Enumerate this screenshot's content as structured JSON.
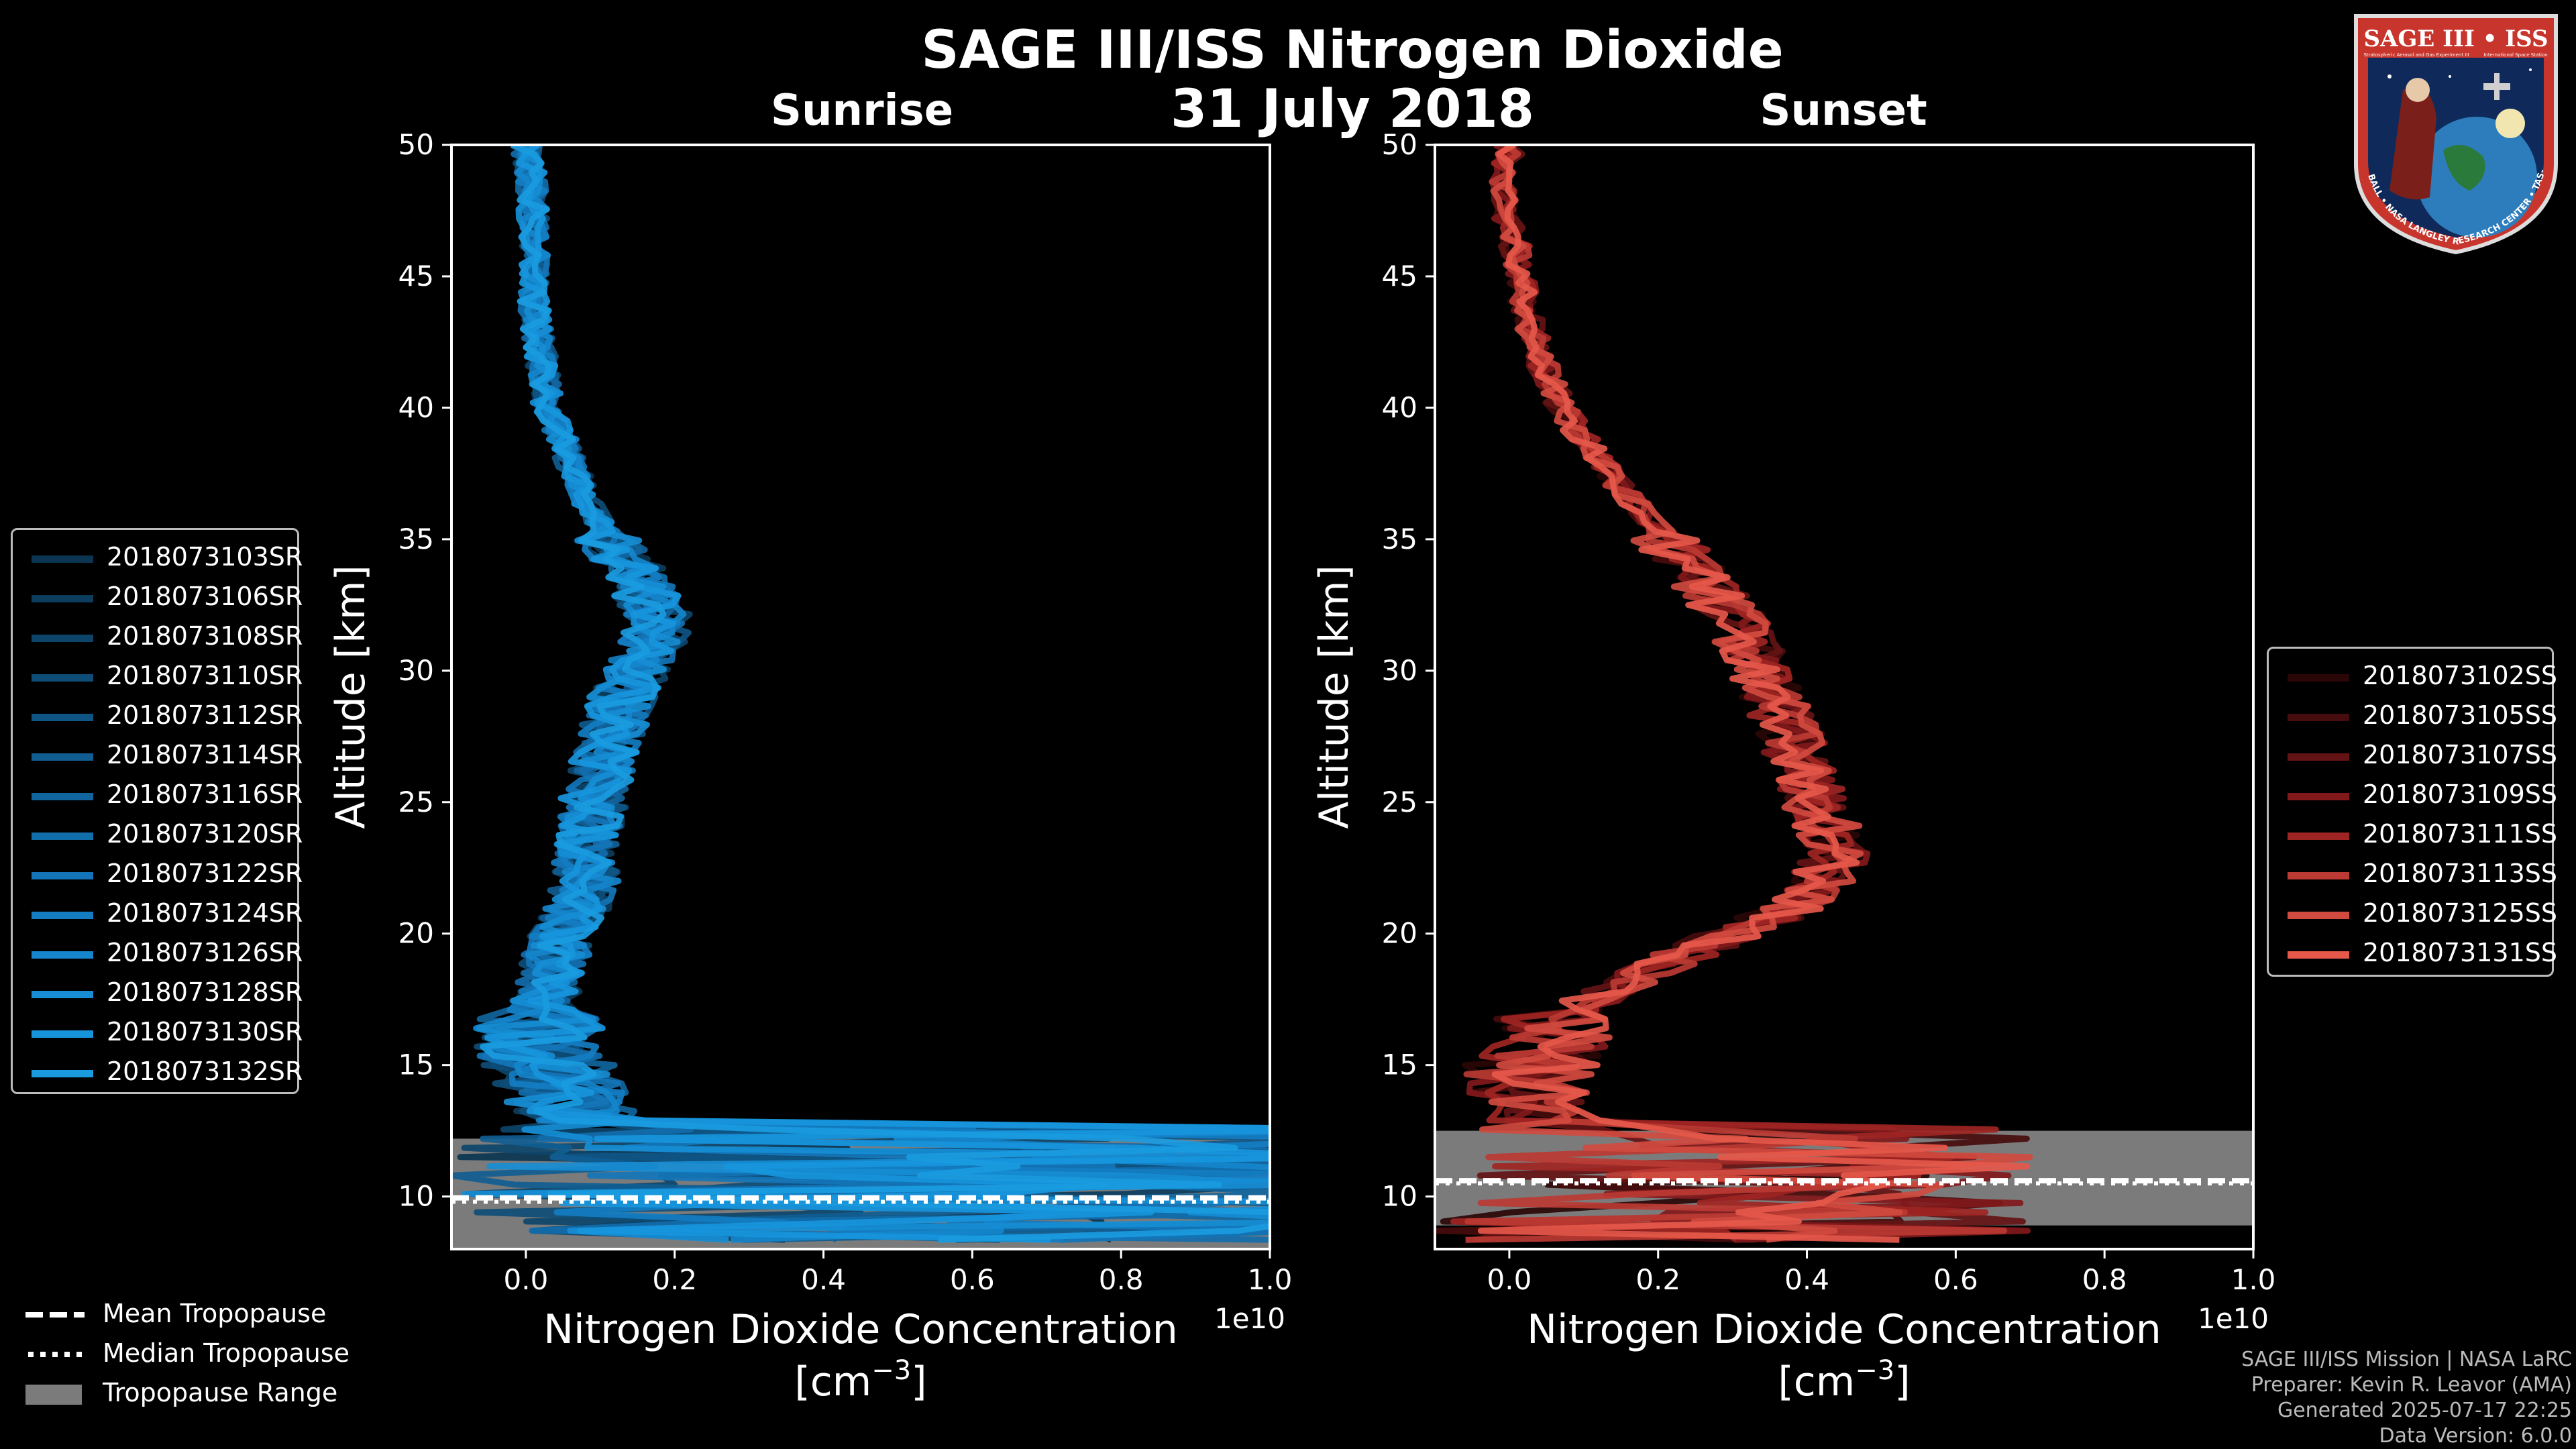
{
  "title": "SAGE III/ISS Nitrogen Dioxide",
  "date": "31 July 2018",
  "colors": {
    "background": "#000000",
    "sunrise": "#1a9be0",
    "sunset": "#e5584a",
    "tropopause_range": "#7b7b7b"
  },
  "chart_data": [
    {
      "type": "line",
      "panel": "Sunrise",
      "title": "Sunrise",
      "xlabel": "Nitrogen Dioxide Concentration",
      "xlabel_units": "[cm",
      "xlabel_exp": "−3",
      "xlabel_close": "]",
      "x_scale_label": "1e10",
      "ylabel": "Altitude [km]",
      "xlim": [
        -0.1,
        1.0
      ],
      "ylim": [
        8,
        50
      ],
      "xticks": [
        "0.0",
        "0.2",
        "0.4",
        "0.6",
        "0.8",
        "1.0"
      ],
      "xtick_values": [
        0.0,
        0.2,
        0.4,
        0.6,
        0.8,
        1.0
      ],
      "yticks": [
        "10",
        "15",
        "20",
        "25",
        "30",
        "35",
        "40",
        "45",
        "50"
      ],
      "ytick_values": [
        10,
        15,
        20,
        25,
        30,
        35,
        40,
        45,
        50
      ],
      "tropopause": {
        "mean": 9.95,
        "median": 9.9,
        "range": [
          8.0,
          12.2
        ]
      },
      "profile_altitudes_km": [
        50,
        48,
        46,
        44,
        42,
        40,
        38,
        36,
        35,
        34,
        33,
        32,
        31,
        30,
        29,
        28,
        27,
        26,
        25,
        24,
        23,
        22,
        21,
        20,
        19,
        18,
        17,
        16,
        15,
        14,
        13,
        12,
        11,
        10,
        9,
        8.5
      ],
      "profile_mean_1e10": [
        0.0,
        0.01,
        0.01,
        0.01,
        0.02,
        0.03,
        0.06,
        0.09,
        0.11,
        0.14,
        0.16,
        0.18,
        0.17,
        0.15,
        0.13,
        0.12,
        0.11,
        0.1,
        0.09,
        0.09,
        0.08,
        0.08,
        0.07,
        0.05,
        0.04,
        0.03,
        0.02,
        0.02,
        0.03,
        0.05,
        0.08,
        0.2,
        0.3,
        0.25,
        0.3,
        0.35
      ],
      "series": [
        {
          "name": "2018073103SR",
          "color": "#0b3550"
        },
        {
          "name": "2018073106SR",
          "color": "#0c3d5d"
        },
        {
          "name": "2018073108SR",
          "color": "#0d456a"
        },
        {
          "name": "2018073110SR",
          "color": "#0e4d77"
        },
        {
          "name": "2018073112SR",
          "color": "#0f5584"
        },
        {
          "name": "2018073114SR",
          "color": "#105d91"
        },
        {
          "name": "2018073116SR",
          "color": "#11659e"
        },
        {
          "name": "2018073120SR",
          "color": "#126dab"
        },
        {
          "name": "2018073122SR",
          "color": "#1375b8"
        },
        {
          "name": "2018073124SR",
          "color": "#147dc2"
        },
        {
          "name": "2018073126SR",
          "color": "#1585cc"
        },
        {
          "name": "2018073128SR",
          "color": "#168dd4"
        },
        {
          "name": "2018073130SR",
          "color": "#1795dc"
        },
        {
          "name": "2018073132SR",
          "color": "#1a9be0"
        }
      ]
    },
    {
      "type": "line",
      "panel": "Sunset",
      "title": "Sunset",
      "xlabel": "Nitrogen Dioxide Concentration",
      "xlabel_units": "[cm",
      "xlabel_exp": "−3",
      "xlabel_close": "]",
      "x_scale_label": "1e10",
      "ylabel": "Altitude [km]",
      "xlim": [
        -0.1,
        1.0
      ],
      "ylim": [
        8,
        50
      ],
      "xticks": [
        "0.0",
        "0.2",
        "0.4",
        "0.6",
        "0.8",
        "1.0"
      ],
      "xtick_values": [
        0.0,
        0.2,
        0.4,
        0.6,
        0.8,
        1.0
      ],
      "yticks": [
        "10",
        "15",
        "20",
        "25",
        "30",
        "35",
        "40",
        "45",
        "50"
      ],
      "ytick_values": [
        10,
        15,
        20,
        25,
        30,
        35,
        40,
        45,
        50
      ],
      "tropopause": {
        "mean": 10.6,
        "median": 10.6,
        "range": [
          8.9,
          12.5
        ]
      },
      "profile_altitudes_km": [
        50,
        48,
        46,
        44,
        42,
        40,
        38,
        36,
        34,
        32,
        30,
        28,
        26,
        25,
        24,
        23,
        22,
        21,
        20,
        19,
        18,
        17,
        16,
        15,
        14,
        13,
        12,
        11,
        10,
        9
      ],
      "profile_mean_1e10": [
        0.0,
        -0.01,
        0.01,
        0.02,
        0.04,
        0.07,
        0.12,
        0.18,
        0.24,
        0.3,
        0.34,
        0.37,
        0.4,
        0.41,
        0.43,
        0.44,
        0.42,
        0.38,
        0.3,
        0.22,
        0.14,
        0.08,
        0.05,
        0.03,
        0.02,
        0.03,
        0.2,
        0.3,
        0.25,
        0.2
      ],
      "series": [
        {
          "name": "2018073102SS",
          "color": "#2a0607"
        },
        {
          "name": "2018073105SS",
          "color": "#470c0d"
        },
        {
          "name": "2018073107SS",
          "color": "#641314"
        },
        {
          "name": "2018073109SS",
          "color": "#81191b"
        },
        {
          "name": "2018073111SS",
          "color": "#9e2523"
        },
        {
          "name": "2018073113SS",
          "color": "#bb3a33"
        },
        {
          "name": "2018073125SS",
          "color": "#d04a3f"
        },
        {
          "name": "2018073131SS",
          "color": "#e5584a"
        }
      ]
    }
  ],
  "tropopause_legend": [
    {
      "label": "Mean Tropopause",
      "style": "dashed"
    },
    {
      "label": "Median Tropopause",
      "style": "dotted"
    },
    {
      "label": "Tropopause Range",
      "style": "patch"
    }
  ],
  "credits": {
    "line1": "SAGE III/ISS Mission | NASA LaRC",
    "line2": "Preparer: Kevin R. Leavor (AMA)",
    "line3": "Generated 2025-07-17 22:25",
    "line4": "Data Version: 6.0.0"
  },
  "logo": {
    "top_text": "SAGE III • ISS",
    "sub_text_left": "Stratospheric Aerosol and Gas Experiment III",
    "sub_text_right": "International Space Station",
    "ring_text": "BALL • NASA LANGLEY RESEARCH CENTER • TAS-I • ESA"
  }
}
